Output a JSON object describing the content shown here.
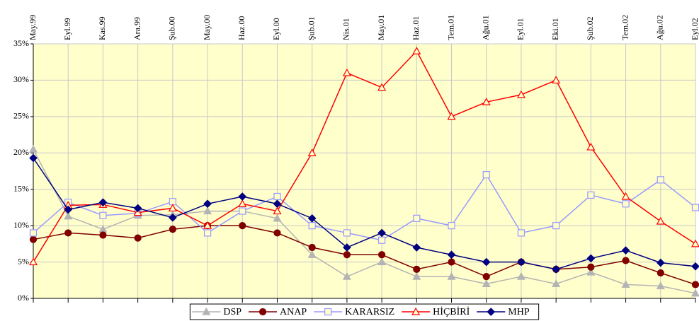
{
  "chart_data": {
    "type": "line",
    "categories": [
      "May.99",
      "Eyl.99",
      "Kas.99",
      "Ara.99",
      "Şub.00",
      "May.00",
      "Haz.00",
      "Eyl.00",
      "Şub.01",
      "Nis.01",
      "May.01",
      "Haz.01",
      "Tem.01",
      "Ağu.01",
      "Eyl.01",
      "Eki.01",
      "Şub.02",
      "Tem.02",
      "Ağu.02",
      "Eyl.02"
    ],
    "series": [
      {
        "name": "DSP",
        "color": "#b4b4b4",
        "marker": "triangle",
        "values": [
          20.5,
          11.3,
          9.5,
          11.4,
          11.5,
          12,
          12,
          11,
          6,
          3,
          5,
          3,
          3,
          2,
          3,
          2,
          3.6,
          1.9,
          1.7,
          0.7
        ]
      },
      {
        "name": "ANAP",
        "color": "#800000",
        "marker": "circle",
        "values": [
          8.1,
          9,
          8.7,
          8.3,
          9.5,
          10,
          10,
          9,
          7,
          6,
          6,
          4,
          5,
          3,
          5,
          4,
          4.3,
          5.2,
          3.5,
          1.9
        ]
      },
      {
        "name": "KARARSIZ",
        "color": "#9999ff",
        "marker": "square-open",
        "values": [
          9,
          13.2,
          11.4,
          11.7,
          13.3,
          9,
          12,
          14,
          10,
          9,
          8,
          11,
          10,
          17,
          9,
          10,
          14.2,
          13,
          16.3,
          12.5
        ]
      },
      {
        "name": "HİÇBİRİ",
        "color": "#ff0000",
        "marker": "triangle-open",
        "values": [
          5,
          12.8,
          12.9,
          11.8,
          12.4,
          10,
          13,
          12,
          20,
          31,
          29,
          34,
          25,
          27,
          28,
          30,
          20.8,
          14,
          10.6,
          7.5
        ]
      },
      {
        "name": "MHP",
        "color": "#000080",
        "marker": "diamond",
        "values": [
          19.3,
          12.2,
          13.2,
          12.4,
          11.1,
          13,
          14,
          13,
          11,
          7,
          9,
          7,
          6,
          5,
          5,
          4,
          5.5,
          6.6,
          4.9,
          4.4
        ]
      }
    ],
    "ylim": [
      0,
      35
    ],
    "yticks": [
      {
        "value": 0,
        "label": "0%"
      },
      {
        "value": 5,
        "label": "5%"
      },
      {
        "value": 10,
        "label": "10%"
      },
      {
        "value": 15,
        "label": "15%"
      },
      {
        "value": 20,
        "label": "20%"
      },
      {
        "value": 25,
        "label": "25%"
      },
      {
        "value": 30,
        "label": "30%"
      },
      {
        "value": 35,
        "label": "35%"
      }
    ],
    "grid": true,
    "background": "#ffffcc",
    "legend": "bottom"
  }
}
